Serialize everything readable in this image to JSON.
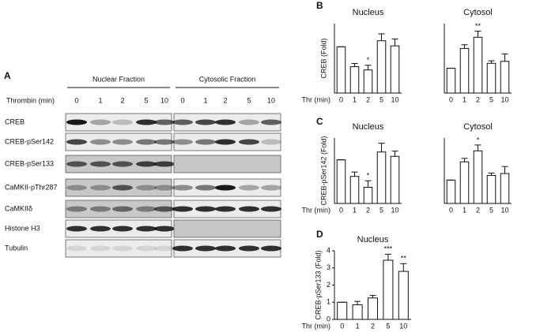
{
  "blot": {
    "panel": "A",
    "fractions": [
      "Nuclear Fraction",
      "Cytosolic Fraction"
    ],
    "lane_title": "Thrombin (min)",
    "lanes": [
      "0",
      "1",
      "2",
      "5",
      "10"
    ],
    "rows": [
      "CREB",
      "CREB-pSer142",
      "CREB-pSer133",
      "CaMKII-pThr287",
      "CaMKIIδ",
      "Histone H3",
      "Tubulin"
    ]
  },
  "chart_data": [
    {
      "type": "bar",
      "panel": "B",
      "title": "Nucleus",
      "ylabel": "CREB (Fold)",
      "xlabel": "Thr (min)",
      "categories": [
        "0",
        "1",
        "2",
        "5",
        "10"
      ],
      "values": [
        1,
        0.57,
        0.5,
        1.13,
        1.02
      ],
      "errors": [
        0,
        0.07,
        0.1,
        0.15,
        0.15
      ],
      "significance": [
        null,
        null,
        "*",
        null,
        null
      ],
      "ylim": [
        0,
        1.5
      ]
    },
    {
      "type": "bar",
      "title": "Cytosol",
      "categories": [
        "0",
        "1",
        "2",
        "5",
        "10"
      ],
      "values": [
        1,
        1.8,
        2.25,
        1.2,
        1.28
      ],
      "errors": [
        0,
        0.15,
        0.25,
        0.1,
        0.3
      ],
      "significance": [
        null,
        null,
        "**",
        null,
        null
      ],
      "ylim": [
        0,
        2.8
      ]
    },
    {
      "type": "bar",
      "panel": "C",
      "title": "Nucleus",
      "ylabel": "CREB-pSer142 (Fold)",
      "xlabel": "Thr (min)",
      "categories": [
        "0",
        "1",
        "2",
        "5",
        "10"
      ],
      "values": [
        1,
        0.62,
        0.37,
        1.18,
        1.08
      ],
      "errors": [
        0,
        0.1,
        0.15,
        0.2,
        0.12
      ],
      "significance": [
        null,
        null,
        "*",
        null,
        null
      ],
      "ylim": [
        0,
        1.5
      ]
    },
    {
      "type": "bar",
      "title": "Cytosol",
      "categories": [
        "0",
        "1",
        "2",
        "5",
        "10"
      ],
      "values": [
        1,
        1.78,
        2.25,
        1.2,
        1.28
      ],
      "errors": [
        0,
        0.15,
        0.25,
        0.1,
        0.3
      ],
      "significance": [
        null,
        null,
        "*",
        null,
        null
      ],
      "ylim": [
        0,
        2.8
      ]
    },
    {
      "type": "bar",
      "panel": "D",
      "title": "Nucleus",
      "ylabel": "CREB-pSer133 (Fold)",
      "xlabel": "Thr (min)",
      "categories": [
        "0",
        "1",
        "2",
        "5",
        "10"
      ],
      "values": [
        1,
        0.85,
        1.25,
        3.45,
        2.8
      ],
      "errors": [
        0,
        0.2,
        0.15,
        0.35,
        0.45
      ],
      "significance": [
        null,
        null,
        null,
        "***",
        "**"
      ],
      "ylim": [
        0,
        4
      ],
      "yticks": [
        0,
        1,
        2,
        3,
        4
      ]
    }
  ]
}
